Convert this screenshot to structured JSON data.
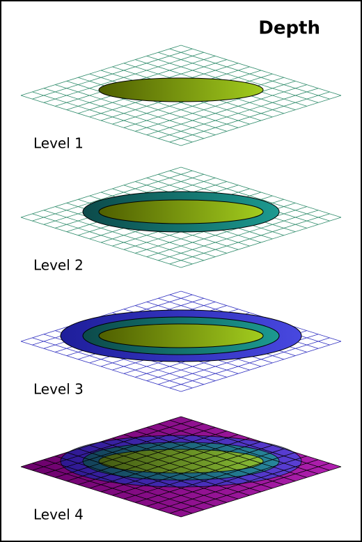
{
  "title": "Depth",
  "levels": [
    {
      "label": "Level 1"
    },
    {
      "label": "Level 2"
    },
    {
      "label": "Level 3"
    },
    {
      "label": "Level 4"
    }
  ]
}
